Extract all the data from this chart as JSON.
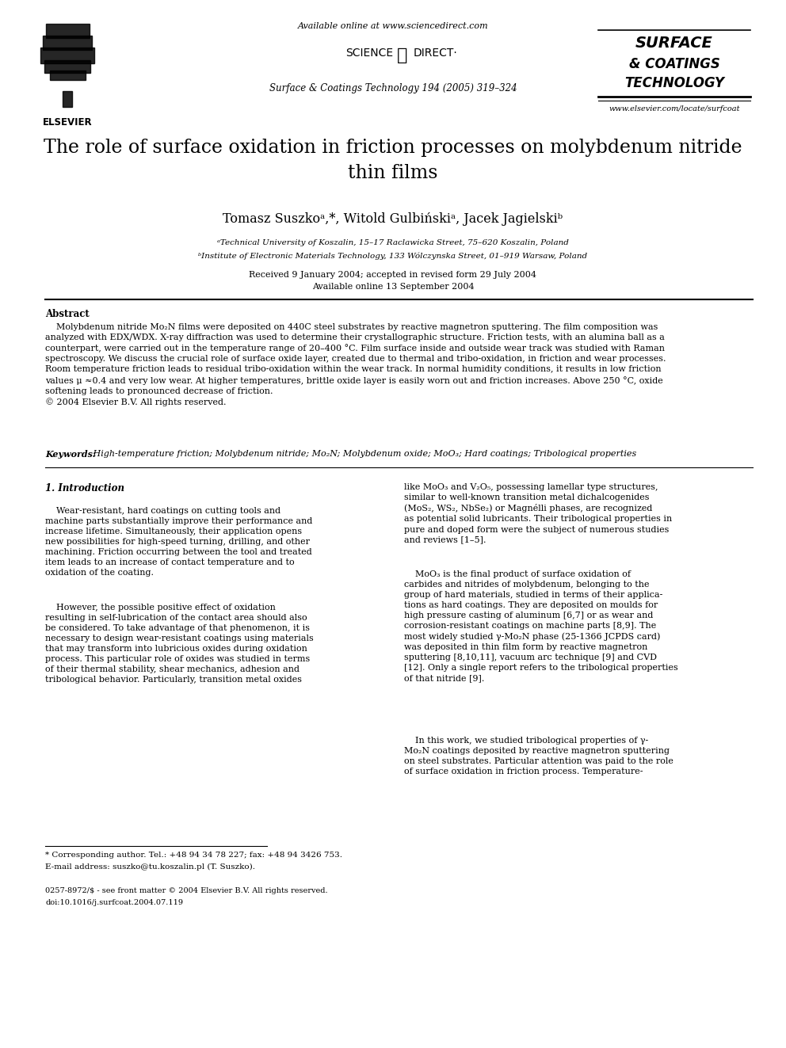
{
  "page_bg": "#ffffff",
  "header_available": "Available online at www.sciencedirect.com",
  "header_journal_line": "Surface & Coatings Technology 194 (2005) 319–324",
  "header_elsevier": "ELSEVIER",
  "header_jname1": "SURFACE",
  "header_jname2": "& COATINGS",
  "header_jname3": "TECHNOLOGY",
  "header_url": "www.elsevier.com/locate/surfcoat",
  "title": "The role of surface oxidation in friction processes on molybdenum nitride\nthin films",
  "authors": "Tomasz Suszkoᵃ,*, Witold Gulbińskiᵃ, Jacek Jagielskiᵇ",
  "affil1": "ᵃTechnical University of Koszalin, 15–17 Raclawicka Street, 75–620 Koszalin, Poland",
  "affil2": "ᵇInstitute of Electronic Materials Technology, 133 Wólczynska Street, 01–919 Warsaw, Poland",
  "dates": "Received 9 January 2004; accepted in revised form 29 July 2004",
  "available": "Available online 13 September 2004",
  "abstract_title": "Abstract",
  "abstract_body": "    Molybdenum nitride Mo₂N films were deposited on 440C steel substrates by reactive magnetron sputtering. The film composition was\nanalyzed with EDX/WDX. X-ray diffraction was used to determine their crystallographic structure. Friction tests, with an alumina ball as a\ncounterpart, were carried out in the temperature range of 20–400 °C. Film surface inside and outside wear track was studied with Raman\nspectroscopy. We discuss the crucial role of surface oxide layer, created due to thermal and tribo-oxidation, in friction and wear processes.\nRoom temperature friction leads to residual tribo-oxidation within the wear track. In normal humidity conditions, it results in low friction\nvalues μ ≈0.4 and very low wear. At higher temperatures, brittle oxide layer is easily worn out and friction increases. Above 250 °C, oxide\nsoftening leads to pronounced decrease of friction.\n© 2004 Elsevier B.V. All rights reserved.",
  "kw_label": "Keywords:",
  "kw_text": " High-temperature friction; Molybdenum nitride; Mo₂N; Molybdenum oxide; MoO₃; Hard coatings; Tribological properties",
  "sec1_title": "1. Introduction",
  "col1_p1": "    Wear-resistant, hard coatings on cutting tools and\nmachine parts substantially improve their performance and\nincrease lifetime. Simultaneously, their application opens\nnew possibilities for high-speed turning, drilling, and other\nmachining. Friction occurring between the tool and treated\nitem leads to an increase of contact temperature and to\noxidation of the coating.",
  "col1_p2": "    However, the possible positive effect of oxidation\nresulting in self-lubrication of the contact area should also\nbe considered. To take advantage of that phenomenon, it is\nnecessary to design wear-resistant coatings using materials\nthat may transform into lubricious oxides during oxidation\nprocess. This particular role of oxides was studied in terms\nof their thermal stability, shear mechanics, adhesion and\ntribological behavior. Particularly, transition metal oxides",
  "col2_p1": "like MoO₃ and V₂O₅, possessing lamellar type structures,\nsimilar to well-known transition metal dichalcogenides\n(MoS₂, WS₂, NbSe₂) or Magnélli phases, are recognized\nas potential solid lubricants. Their tribological properties in\npure and doped form were the subject of numerous studies\nand reviews [1–5].",
  "col2_p2": "    MoO₃ is the final product of surface oxidation of\ncarbides and nitrides of molybdenum, belonging to the\ngroup of hard materials, studied in terms of their applica-\ntions as hard coatings. They are deposited on moulds for\nhigh pressure casting of aluminum [6,7] or as wear and\ncorrosion-resistant coatings on machine parts [8,9]. The\nmost widely studied γ-Mo₂N phase (25-1366 JCPDS card)\nwas deposited in thin film form by reactive magnetron\nsputtering [8,10,11], vacuum arc technique [9] and CVD\n[12]. Only a single report refers to the tribological properties\nof that nitride [9].",
  "col2_p3": "    In this work, we studied tribological properties of γ-\nMo₂N coatings deposited by reactive magnetron sputtering\non steel substrates. Particular attention was paid to the role\nof surface oxidation in friction process. Temperature-",
  "fn_star": "* Corresponding author. Tel.: +48 94 34 78 227; fax: +48 94 3426 753.",
  "fn_email": "E-mail address: suszko@tu.koszalin.pl (T. Suszko).",
  "footer1": "0257-8972/$ - see front matter © 2004 Elsevier B.V. All rights reserved.",
  "footer2": "doi:10.1016/j.surfcoat.2004.07.119"
}
